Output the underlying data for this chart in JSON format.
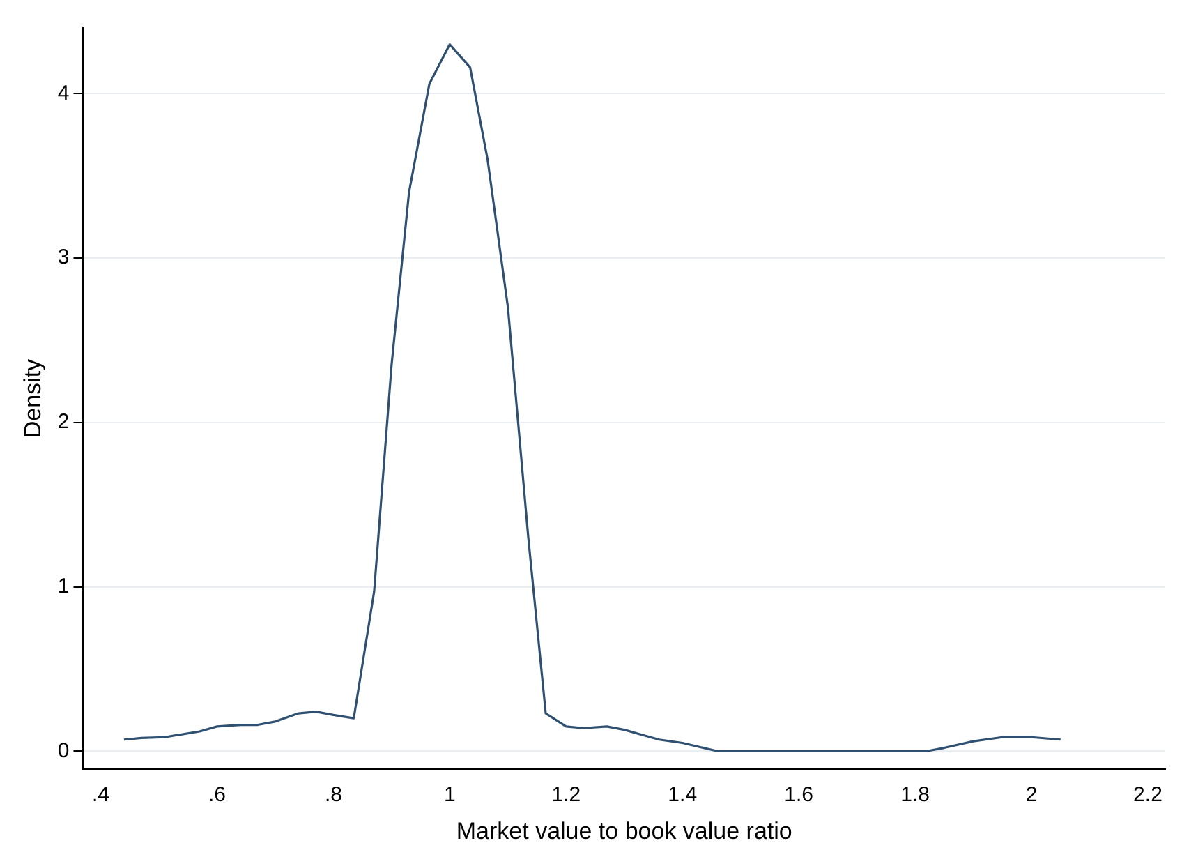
{
  "chart_data": {
    "type": "line",
    "xlabel": "Market value to book value ratio",
    "ylabel": "Density",
    "x": [
      0.44,
      0.47,
      0.51,
      0.57,
      0.6,
      0.64,
      0.67,
      0.7,
      0.74,
      0.77,
      0.8,
      0.835,
      0.87,
      0.9,
      0.93,
      0.965,
      1.0,
      1.035,
      1.065,
      1.1,
      1.135,
      1.165,
      1.2,
      1.23,
      1.27,
      1.3,
      1.33,
      1.36,
      1.4,
      1.46,
      1.82,
      1.85,
      1.9,
      1.95,
      2.0,
      2.05
    ],
    "series": [
      {
        "color": "#2f5070",
        "values": [
          0.07,
          0.08,
          0.085,
          0.12,
          0.15,
          0.16,
          0.16,
          0.18,
          0.23,
          0.24,
          0.22,
          0.2,
          0.97,
          2.35,
          3.4,
          4.06,
          4.3,
          4.16,
          3.6,
          2.7,
          1.3,
          0.23,
          0.15,
          0.14,
          0.15,
          0.13,
          0.1,
          0.07,
          0.05,
          0,
          0,
          0.02,
          0.06,
          0.085,
          0.085,
          0.07
        ]
      }
    ],
    "xlim": [
      0.37,
      2.23
    ],
    "ylim": [
      -0.11,
      4.4
    ],
    "xticks": [
      {
        "value": 0.4,
        "label": ".4"
      },
      {
        "value": 0.6,
        "label": ".6"
      },
      {
        "value": 0.8,
        "label": ".8"
      },
      1,
      1.2,
      1.4,
      1.6,
      1.8,
      2,
      2.2
    ],
    "yticks": [
      0,
      1,
      2,
      3,
      4
    ],
    "grid": "y",
    "marker": "none",
    "line_style": "solid"
  }
}
